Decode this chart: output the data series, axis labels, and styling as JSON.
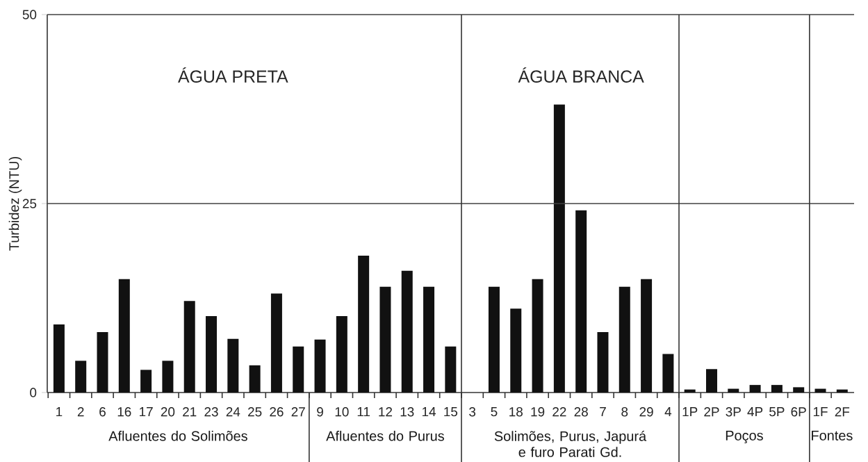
{
  "chart_data": {
    "type": "bar",
    "ylabel": "Turbidez (NTU)",
    "categories": [
      "1",
      "2",
      "6",
      "16",
      "17",
      "20",
      "21",
      "23",
      "24",
      "25",
      "26",
      "27",
      "9",
      "10",
      "11",
      "12",
      "13",
      "14",
      "15",
      "3",
      "5",
      "18",
      "19",
      "22",
      "28",
      "7",
      "8",
      "29",
      "4",
      "1P",
      "2P",
      "3P",
      "4P",
      "5P",
      "6P",
      "1F",
      "2F"
    ],
    "values": [
      9.0,
      4.2,
      8.0,
      15.0,
      3.0,
      4.2,
      12.1,
      10.1,
      7.1,
      3.6,
      13.1,
      6.1,
      7.0,
      10.1,
      18.1,
      14.0,
      16.1,
      14.0,
      6.1,
      0,
      14.0,
      11.1,
      15.0,
      38.1,
      24.1,
      8.0,
      14.0,
      15.0,
      5.1,
      0.4,
      3.1,
      0.5,
      1.0,
      1.0,
      0.7,
      0.5,
      0.4
    ],
    "color": "#111111",
    "ylim": [
      0,
      50
    ],
    "yticks": [
      0,
      25,
      50
    ],
    "ref_lines": [
      {
        "axis": "y",
        "value": 25,
        "color": "#404040"
      },
      {
        "axis": "y",
        "value": 50,
        "color": "#404040"
      }
    ],
    "annotations": [
      "ÁGUA PRETA",
      "ÁGUA BRANCA",
      "Afluentes do Solimões",
      "Afluentes do Purus",
      "Solimões, Purus, Japurá e furo Parati Gd.",
      "Poços",
      "Fontes"
    ]
  }
}
